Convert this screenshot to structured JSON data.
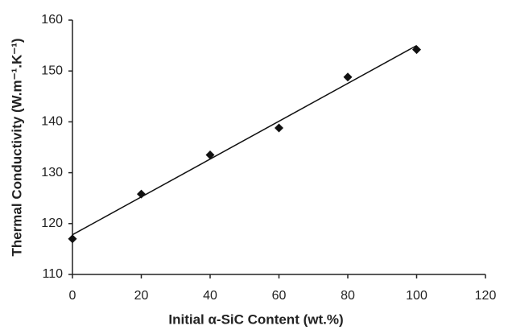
{
  "chart_data": {
    "type": "scatter",
    "x_label": "Initial α-SiC Content (wt.%)",
    "y_label": "Thermal Conductivity (W.m⁻¹.K⁻¹)",
    "x": [
      0,
      20,
      40,
      60,
      80,
      100
    ],
    "values": [
      117,
      125.8,
      133.5,
      138.8,
      148.8,
      154.2
    ],
    "color": "#111111",
    "trendline": {
      "x": [
        0,
        100
      ],
      "values": [
        117.8,
        155
      ]
    },
    "xlim": [
      0,
      120
    ],
    "xticks": [
      0,
      20,
      40,
      60,
      80,
      100,
      120
    ],
    "ylim": [
      110,
      160
    ],
    "yticks": [
      110,
      120,
      130,
      140,
      150,
      160
    ],
    "grid": false
  }
}
